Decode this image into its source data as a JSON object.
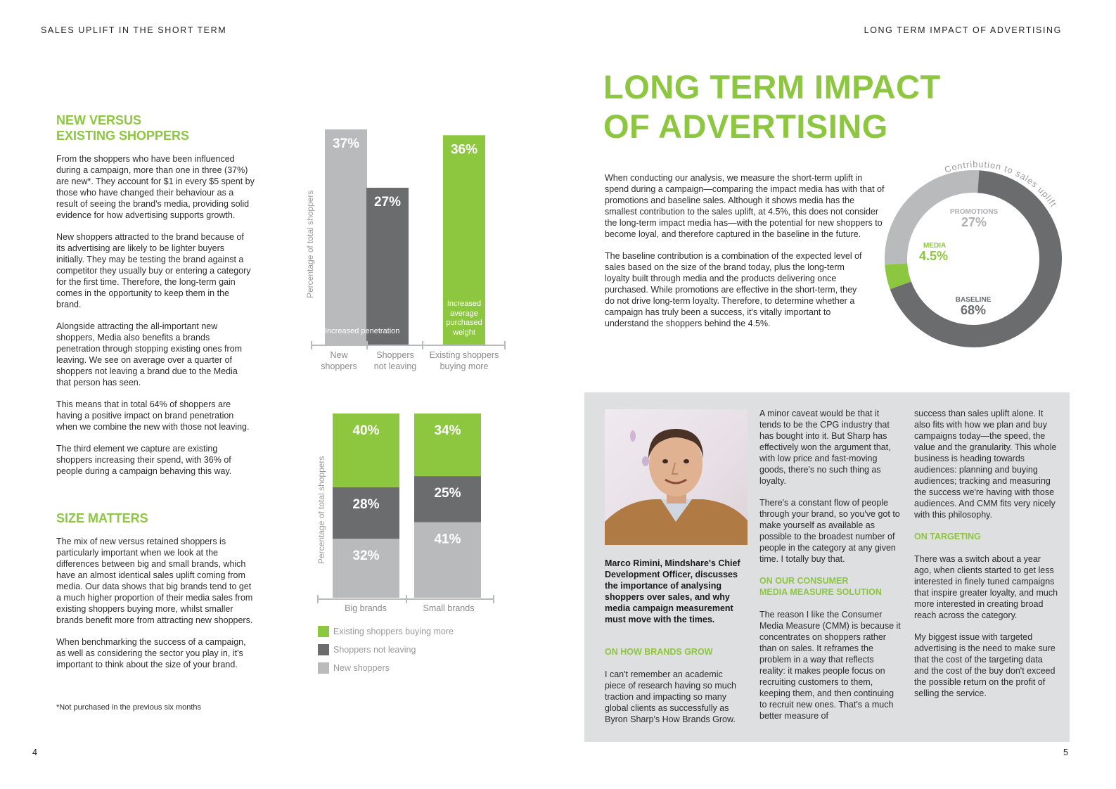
{
  "left_header": "SALES UPLIFT IN THE SHORT TERM",
  "right_header": "LONG TERM IMPACT OF ADVERTISING",
  "left": {
    "heading1_line1": "NEW VERSUS",
    "heading1_line2": "EXISTING SHOPPERS",
    "para1": "From the shoppers who have been influenced during a campaign, more than one in three (37%) are new*. They account for $1 in every $5 spent by those who have changed their behaviour as a result of seeing the brand's media, providing solid evidence for how advertising supports growth.",
    "para2": "New shoppers attracted to the brand because of its advertising are likely to be lighter buyers initially. They may be testing the brand against a competitor they usually buy or entering a category for the first time. Therefore, the long-term gain comes in the opportunity to keep them in the brand.",
    "para3": "Alongside attracting the all-important new shoppers, Media also benefits a brands penetration through stopping existing ones from leaving. We see on average over a quarter of shoppers not leaving a brand due to the Media that person has seen.",
    "para4": "This means that in total 64% of shoppers are having a positive impact on brand penetration when we combine the new with those not leaving.",
    "para5": "The third element we capture are existing shoppers increasing their spend, with 36% of people during a campaign behaving this way.",
    "heading2": "SIZE MATTERS",
    "para6": "The mix of new versus retained shoppers is particularly important when we look at the differences between big and small brands, which have an almost identical sales uplift coming from media. Our data shows that big brands tend to get a much higher proportion of their media sales from existing shoppers buying more, whilst smaller brands benefit more from attracting new shoppers.",
    "para7": "When benchmarking the success of a campaign, as well as considering the sector you play in, it's important to think about the size of your brand.",
    "footnote": "*Not purchased in the previous six months",
    "page_number": "4"
  },
  "chart_data": [
    {
      "type": "bar",
      "title": "",
      "ylabel": "Percentage of total shoppers",
      "categories": [
        "New shoppers",
        "Shoppers not leaving",
        "Existing shoppers buying more"
      ],
      "category_lines": [
        [
          "New",
          "shoppers"
        ],
        [
          "Shoppers",
          "not leaving"
        ],
        [
          "Existing shoppers",
          "buying more"
        ]
      ],
      "values": [
        37,
        27,
        36
      ],
      "value_labels": [
        "37%",
        "27%",
        "36%"
      ],
      "colors": [
        "#b9babc",
        "#6b6c6e",
        "#8dc63f"
      ],
      "ylim": [
        0,
        40
      ],
      "annotations": {
        "penetration": "Increased penetration",
        "weight": "Increased average purchased weight"
      }
    },
    {
      "type": "bar",
      "stacked": true,
      "ylabel": "Percentage of total shoppers",
      "categories": [
        "Big brands",
        "Small brands"
      ],
      "series": [
        {
          "name": "New shoppers",
          "color": "#b9babc",
          "values": [
            32,
            41
          ],
          "labels": [
            "32%",
            "41%"
          ]
        },
        {
          "name": "Shoppers not leaving",
          "color": "#6b6c6e",
          "values": [
            28,
            25
          ],
          "labels": [
            "28%",
            "25%"
          ]
        },
        {
          "name": "Existing shoppers buying more",
          "color": "#8dc63f",
          "values": [
            40,
            34
          ],
          "labels": [
            "40%",
            "34%"
          ]
        }
      ],
      "ylim": [
        0,
        100
      ],
      "legend": [
        "Existing shoppers buying more",
        "Shoppers not leaving",
        "New shoppers"
      ]
    },
    {
      "type": "pie",
      "donut": true,
      "title": "Contribution to sales uplift",
      "slices": [
        {
          "name": "MEDIA",
          "value": 4.5,
          "label": "4.5%",
          "color": "#8dc63f"
        },
        {
          "name": "PROMOTIONS",
          "value": 27,
          "label": "27%",
          "color": "#b9babc"
        },
        {
          "name": "BASELINE",
          "value": 68,
          "label": "68%",
          "color": "#6b6c6e"
        }
      ]
    }
  ],
  "right": {
    "title_line1": "LONG TERM IMPACT",
    "title_line2": "OF ADVERTISING",
    "para1": "When conducting our analysis, we measure the short-term uplift in spend during a campaign—comparing the impact media has with that of promotions and baseline sales. Although it shows media has the smallest contribution to the sales uplift, at 4.5%, this does not consider the long-term impact media has—with the potential for new shoppers to become loyal, and therefore captured in the baseline in the future.",
    "para2": "The baseline contribution is a combination of the expected level of sales based on the size of the brand today, plus the long-term loyalty built through media and the products delivering once purchased. While promotions are effective in the short-term, they do not drive long-term loyalty. Therefore, to determine whether a campaign has truly been a success, it's vitally important to understand the shoppers behind the 4.5%.",
    "page_number": "5"
  },
  "interview": {
    "caption": "Marco Rimini, Mindshare's Chief Development Officer, discusses the importance of analysing shoppers over sales, and why media campaign measurement must move with the times.",
    "h_grow": "ON HOW BRANDS GROW",
    "p_grow": "I can't remember an academic piece of research having so much traction and impacting so many global clients as successfully as Byron Sharp's How Brands Grow.",
    "c2_p1": "A minor caveat would be that it tends to be the CPG industry that has bought into it. But Sharp has effectively won the argument that, with low price and fast-moving goods, there's no such thing as loyalty.",
    "c2_p2": "There's a constant flow of people through your brand, so you've got to make yourself as available as possible to the broadest number of people in the category at any given time. I totally buy that.",
    "h_cmm_line1": "ON OUR CONSUMER",
    "h_cmm_line2": "MEDIA MEASURE SOLUTION",
    "c2_p3": "The reason I like the Consumer Media Measure (CMM) is because it concentrates on shoppers rather than on sales. It reframes the problem in a way that reflects reality: it makes people focus on recruiting customers to them, keeping them, and then continuing to recruit new ones. That's a much better measure of",
    "c3_p1": "success than sales uplift alone. It also fits with how we plan and buy campaigns today—the speed, the value and the granularity. This whole business is heading towards audiences: planning and buying audiences; tracking and measuring the success we're having with those audiences. And CMM fits very nicely with this philosophy.",
    "h_target": "ON TARGETING",
    "c3_p2": "There was a switch about a year ago, when clients started to get less interested in finely tuned campaigns that inspire greater loyalty, and much more interested in creating broad reach across the category.",
    "c3_p3": "My biggest issue with targeted advertising is the need to make sure that the cost of the targeting data and the cost of the buy don't exceed the possible return on the profit of selling the service."
  }
}
